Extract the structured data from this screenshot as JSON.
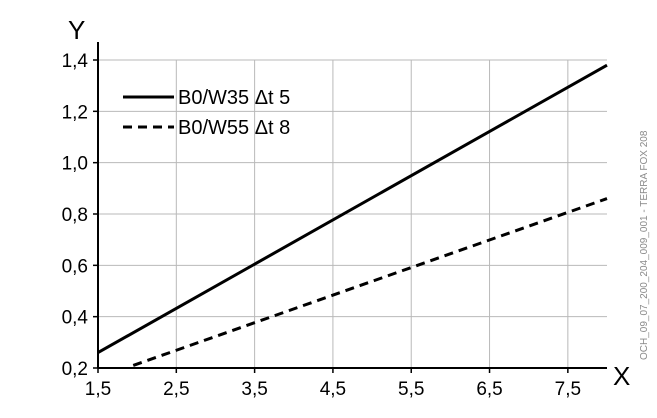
{
  "chart_data": {
    "type": "line",
    "xlabel": "X",
    "ylabel": "Y",
    "xlim": [
      1.5,
      8.0
    ],
    "ylim": [
      0.2,
      1.4
    ],
    "x_ticks": [
      1.5,
      2.5,
      3.5,
      4.5,
      5.5,
      6.5,
      7.5
    ],
    "x_tick_labels": [
      "1,5",
      "2,5",
      "3,5",
      "4,5",
      "5,5",
      "6,5",
      "7,5"
    ],
    "y_ticks": [
      0.2,
      0.4,
      0.6,
      0.8,
      1.0,
      1.2,
      1.4
    ],
    "y_tick_labels": [
      "0,2",
      "0,4",
      "0,6",
      "0,8",
      "1,0",
      "1,2",
      "1,4"
    ],
    "grid": true,
    "legend_position": "top-left",
    "series": [
      {
        "name": "B0/W35 Δt 5",
        "style": "solid",
        "color": "#000000",
        "points": [
          [
            1.5,
            0.26
          ],
          [
            8.0,
            1.38
          ]
        ]
      },
      {
        "name": "B0/W55 Δt 8",
        "style": "dashed",
        "color": "#000000",
        "points": [
          [
            1.95,
            0.21
          ],
          [
            8.0,
            0.86
          ]
        ]
      }
    ]
  },
  "side_note": "OCH_09_07_200_204_009_001 - TERRA FOX 208"
}
